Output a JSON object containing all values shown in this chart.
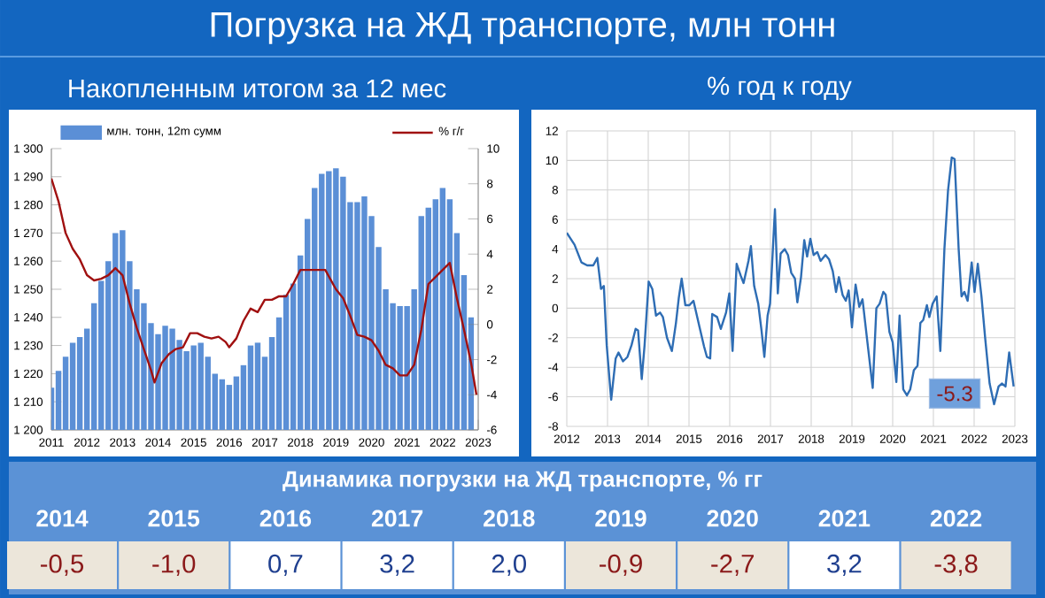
{
  "chart_data": [
    {
      "type": "bar",
      "title": "Погрузка на ЖД транспорте, млн тонн",
      "subtitle": "Накопленным итогом за 12 мес",
      "legend": "top",
      "x": [
        2011.0,
        2011.2,
        2011.4,
        2011.6,
        2011.8,
        2012.0,
        2012.2,
        2012.4,
        2012.6,
        2012.8,
        2013.0,
        2013.2,
        2013.4,
        2013.6,
        2013.8,
        2014.0,
        2014.2,
        2014.4,
        2014.6,
        2014.8,
        2015.0,
        2015.2,
        2015.4,
        2015.6,
        2015.8,
        2016.0,
        2016.2,
        2016.4,
        2016.6,
        2016.8,
        2017.0,
        2017.2,
        2017.4,
        2017.6,
        2017.8,
        2018.0,
        2018.2,
        2018.4,
        2018.6,
        2018.8,
        2019.0,
        2019.2,
        2019.4,
        2019.6,
        2019.8,
        2020.0,
        2020.2,
        2020.4,
        2020.6,
        2020.8,
        2021.0,
        2021.2,
        2021.4,
        2021.6,
        2021.8,
        2022.0,
        2022.2,
        2022.4,
        2022.6,
        2022.8
      ],
      "xlim": [
        2011,
        2023
      ],
      "xticks": [
        2011,
        2012,
        2013,
        2014,
        2015,
        2016,
        2017,
        2018,
        2019,
        2020,
        2021,
        2022,
        2023
      ],
      "ylim": [
        1200,
        1300
      ],
      "yticks": [
        {
          "value": 1200,
          "label": "1 200"
        },
        {
          "value": 1210,
          "label": "1 210"
        },
        {
          "value": 1220,
          "label": "1 220"
        },
        {
          "value": 1230,
          "label": "1 230"
        },
        {
          "value": 1240,
          "label": "1 240"
        },
        {
          "value": 1250,
          "label": "1 250"
        },
        {
          "value": 1260,
          "label": "1 260"
        },
        {
          "value": 1270,
          "label": "1 270"
        },
        {
          "value": 1280,
          "label": "1 280"
        },
        {
          "value": 1290,
          "label": "1 290"
        },
        {
          "value": 1300,
          "label": "1 300"
        }
      ],
      "y2lim": [
        -6,
        10
      ],
      "y2ticks": [
        -6,
        -4,
        -2,
        0,
        2,
        4,
        6,
        8,
        10
      ],
      "series": [
        {
          "name": "млн. тонн, 12m сумм",
          "type": "bar",
          "color": "#5b8fd6",
          "values": [
            1215,
            1221,
            1226,
            1231,
            1233,
            1236,
            1245,
            1253,
            1260,
            1270,
            1271,
            1260,
            1250,
            1245,
            1238,
            1234,
            1237,
            1236,
            1232,
            1228,
            1230,
            1231,
            1226,
            1220,
            1218,
            1216,
            1219,
            1223,
            1230,
            1231,
            1226,
            1233,
            1240,
            1248,
            1252,
            1262,
            1275,
            1286,
            1291,
            1292,
            1293,
            1290,
            1281,
            1281,
            1283,
            1276,
            1265,
            1250,
            1245,
            1244,
            1244,
            1250,
            1276,
            1279,
            1282,
            1286,
            1282,
            1270,
            1255,
            1240
          ]
        },
        {
          "name": "% г/г",
          "type": "line",
          "axis": "y2",
          "color": "#a01010",
          "x": [
            2011.0,
            2011.2,
            2011.4,
            2011.6,
            2011.8,
            2012.0,
            2012.2,
            2012.4,
            2012.6,
            2012.8,
            2013.0,
            2013.2,
            2013.4,
            2013.6,
            2013.8,
            2013.9,
            2014.1,
            2014.3,
            2014.5,
            2014.7,
            2014.9,
            2015.1,
            2015.3,
            2015.5,
            2015.7,
            2015.9,
            2016.0,
            2016.2,
            2016.4,
            2016.6,
            2016.8,
            2017.0,
            2017.2,
            2017.4,
            2017.6,
            2017.8,
            2018.0,
            2018.5,
            2018.7,
            2019.0,
            2019.2,
            2019.4,
            2019.6,
            2019.8,
            2020.0,
            2020.2,
            2020.4,
            2020.6,
            2020.8,
            2021.0,
            2021.2,
            2021.4,
            2021.6,
            2021.8,
            2022.0,
            2022.2,
            2022.4,
            2022.6,
            2022.8,
            2022.95
          ],
          "values": [
            8.3,
            7,
            5.2,
            4.3,
            3.7,
            2.8,
            2.5,
            2.6,
            2.8,
            3.2,
            2.8,
            1.2,
            -0.2,
            -1.4,
            -2.6,
            -3.3,
            -2.2,
            -1.7,
            -1.4,
            -1.3,
            -0.5,
            -0.5,
            -0.7,
            -0.8,
            -0.7,
            -1.0,
            -1.3,
            -0.8,
            0.2,
            0.9,
            0.7,
            1.4,
            1.4,
            1.6,
            1.6,
            2.3,
            3.1,
            3.1,
            3.1,
            2.0,
            1.5,
            0.5,
            -0.6,
            -0.7,
            -0.9,
            -1.5,
            -2.3,
            -2.5,
            -2.9,
            -2.9,
            -2.3,
            -0.3,
            2.3,
            2.7,
            3.1,
            3.5,
            1.5,
            -0.3,
            -2.2,
            -4.0
          ]
        }
      ]
    },
    {
      "type": "line",
      "title": "% год к году",
      "grid": true,
      "xlim": [
        2012,
        2023
      ],
      "xticks": [
        2012,
        2013,
        2014,
        2015,
        2016,
        2017,
        2018,
        2019,
        2020,
        2021,
        2022,
        2023
      ],
      "ylim": [
        -8,
        12
      ],
      "yticks": [
        -8,
        -6,
        -4,
        -2,
        0,
        2,
        4,
        6,
        8,
        10,
        12
      ],
      "annotations": [
        {
          "text": "-5.3",
          "x": 2022.97,
          "y": -5.3
        }
      ],
      "series": [
        {
          "color": "#2e6db4",
          "x": [
            2012.0,
            2012.07,
            2012.19,
            2012.36,
            2012.5,
            2012.65,
            2012.75,
            2012.84,
            2012.91,
            2012.98,
            2013.09,
            2013.2,
            2013.27,
            2013.38,
            2013.49,
            2013.59,
            2013.69,
            2013.75,
            2013.84,
            2013.91,
            2014.01,
            2014.1,
            2014.19,
            2014.29,
            2014.36,
            2014.46,
            2014.58,
            2014.68,
            2014.75,
            2014.82,
            2014.91,
            2015.01,
            2015.11,
            2015.26,
            2015.37,
            2015.44,
            2015.52,
            2015.57,
            2015.69,
            2015.78,
            2015.91,
            2015.99,
            2016.07,
            2016.17,
            2016.27,
            2016.34,
            2016.46,
            2016.52,
            2016.6,
            2016.7,
            2016.78,
            2016.85,
            2016.93,
            2016.99,
            2017.11,
            2017.18,
            2017.25,
            2017.35,
            2017.43,
            2017.51,
            2017.6,
            2017.66,
            2017.75,
            2017.83,
            2017.9,
            2017.98,
            2018.06,
            2018.15,
            2018.23,
            2018.35,
            2018.44,
            2018.53,
            2018.61,
            2018.68,
            2018.77,
            2018.85,
            2018.92,
            2019.0,
            2019.09,
            2019.18,
            2019.26,
            2019.38,
            2019.51,
            2019.6,
            2019.68,
            2019.77,
            2019.83,
            2019.92,
            2020.0,
            2020.09,
            2020.17,
            2020.26,
            2020.35,
            2020.43,
            2020.52,
            2020.61,
            2020.68,
            2020.75,
            2020.84,
            2020.9,
            2020.98,
            2021.08,
            2021.17,
            2021.27,
            2021.36,
            2021.45,
            2021.52,
            2021.62,
            2021.69,
            2021.76,
            2021.84,
            2021.94,
            2022.01,
            2022.09,
            2022.18,
            2022.27,
            2022.38,
            2022.49,
            2022.6,
            2022.68,
            2022.77,
            2022.86,
            2022.97
          ],
          "values": [
            5.1,
            4.8,
            4.3,
            3.1,
            2.9,
            2.9,
            3.4,
            1.3,
            1.5,
            -2.5,
            -6.2,
            -3.4,
            -3.0,
            -3.6,
            -3.3,
            -2.5,
            -1.4,
            -1.5,
            -4.8,
            -2.5,
            1.8,
            1.3,
            -0.5,
            -0.3,
            -0.6,
            -2.0,
            -2.9,
            -1.0,
            0.7,
            2.0,
            0.2,
            0.2,
            0.5,
            -1.3,
            -2.6,
            -3.3,
            -3.4,
            -0.4,
            -0.6,
            -1.4,
            -0.3,
            1.0,
            -2.9,
            3.0,
            2.2,
            1.7,
            3.2,
            4.2,
            1.5,
            0.3,
            -1.5,
            -3.3,
            -0.5,
            0.3,
            6.7,
            1.0,
            3.7,
            4.0,
            3.6,
            2.4,
            2.0,
            0.4,
            2.1,
            4.6,
            3.5,
            4.7,
            3.6,
            3.8,
            3.2,
            3.6,
            3.3,
            2.5,
            1.1,
            2.1,
            0.9,
            0.5,
            1.2,
            -1.3,
            1.6,
            0.1,
            0.6,
            -2.3,
            -5.4,
            0.0,
            0.3,
            1.1,
            0.9,
            -1.6,
            -2.3,
            -5.0,
            -0.5,
            -5.5,
            -5.9,
            -5.5,
            -4.2,
            -3.9,
            -1.0,
            -0.8,
            0.2,
            -0.6,
            0.3,
            0.8,
            -2.9,
            4.0,
            8.0,
            10.2,
            10.1,
            4.0,
            0.8,
            1.1,
            0.5,
            3.1,
            1.1,
            3.0,
            0.8,
            -2.0,
            -5.1,
            -6.5,
            -5.3,
            -5.1,
            -5.3,
            -3.0,
            -5.3
          ]
        }
      ]
    },
    {
      "type": "heatmap",
      "title": "Динамика погрузки на ЖД транспорте, % гг",
      "categories": [
        "2014",
        "2015",
        "2016",
        "2017",
        "2018",
        "2019",
        "2020",
        "2021",
        "2022"
      ],
      "y_categories": [
        null
      ],
      "cells": [
        [
          -0.5,
          -1.0,
          0.7,
          3.2,
          2.0,
          -0.9,
          -2.7,
          3.2,
          -3.8
        ]
      ],
      "cell_labels": [
        [
          "-0,5",
          "-1,0",
          "0,7",
          "3,2",
          "2,0",
          "-0,9",
          "-2,7",
          "3,2",
          "-3,8"
        ]
      ]
    }
  ]
}
